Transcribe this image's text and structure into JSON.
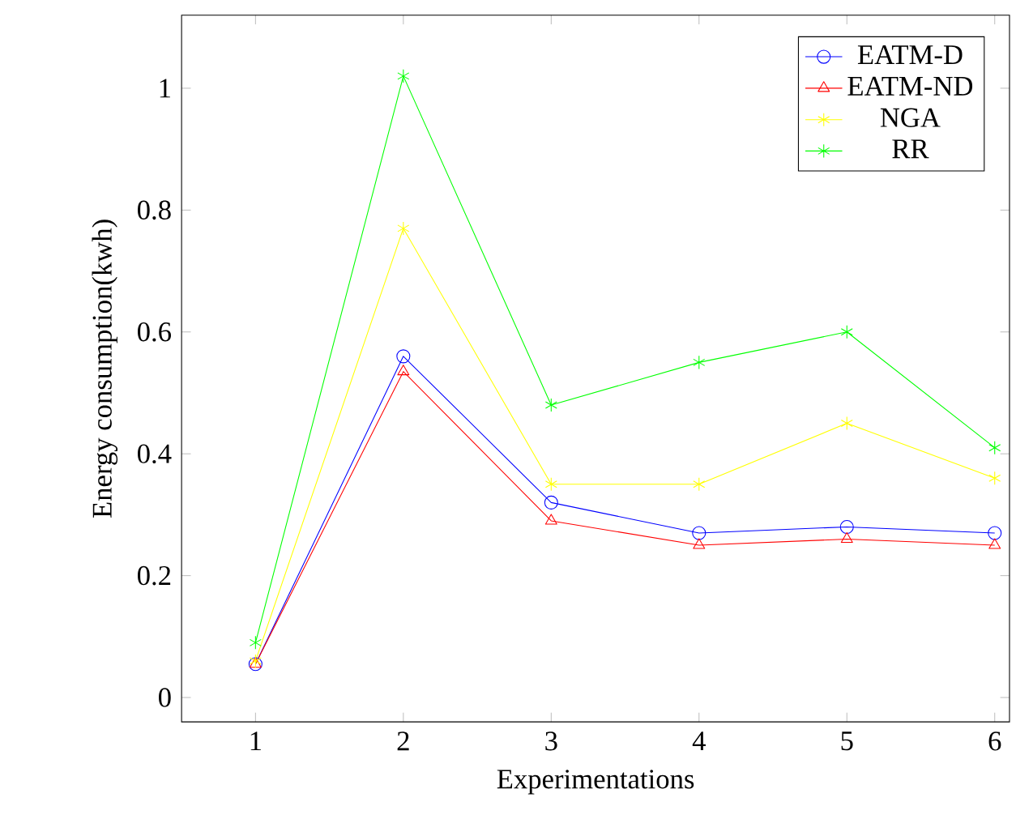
{
  "chart_data": {
    "type": "line",
    "xlabel": "Experimentations",
    "ylabel": "Energy consumption(kwh)",
    "x": [
      1,
      2,
      3,
      4,
      5,
      6
    ],
    "series": [
      {
        "name": "EATM-D",
        "color": "#0000ff",
        "marker": "circle",
        "values": [
          0.055,
          0.56,
          0.32,
          0.27,
          0.28,
          0.27
        ]
      },
      {
        "name": "EATM-ND",
        "color": "#ff0000",
        "marker": "triangle",
        "values": [
          0.055,
          0.535,
          0.29,
          0.25,
          0.26,
          0.25
        ]
      },
      {
        "name": "NGA",
        "color": "#ffff00",
        "marker": "cross",
        "values": [
          0.06,
          0.77,
          0.35,
          0.35,
          0.45,
          0.36
        ]
      },
      {
        "name": "RR",
        "color": "#00ff00",
        "marker": "cross",
        "values": [
          0.09,
          1.02,
          0.48,
          0.55,
          0.6,
          0.41
        ]
      }
    ],
    "xlim": [
      0.5,
      6.1
    ],
    "ylim": [
      -0.04,
      1.12
    ],
    "xticks": [
      1,
      2,
      3,
      4,
      5,
      6
    ],
    "yticks": [
      0,
      0.2,
      0.4,
      0.6,
      0.8,
      1
    ],
    "legend": "top right",
    "grid": false,
    "line_style": "solid"
  }
}
